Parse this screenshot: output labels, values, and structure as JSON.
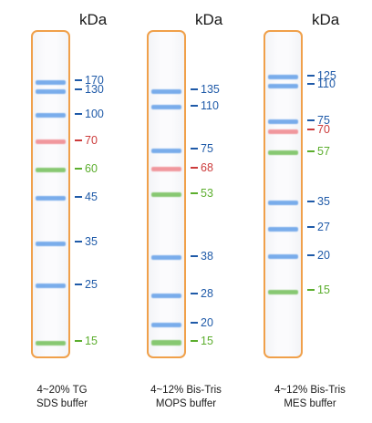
{
  "unit_label": "kDa",
  "colors": {
    "blue": "#1f5aa8",
    "red": "#cc3b3b",
    "green": "#5cae2e",
    "border": "#f0a04a"
  },
  "ladders": [
    {
      "caption": [
        "4~20% TG",
        "SDS buffer"
      ],
      "markers": [
        {
          "mw": "170",
          "color": "blue",
          "pos": 0.153
        },
        {
          "mw": "130",
          "color": "blue",
          "pos": 0.181
        },
        {
          "mw": "100",
          "color": "blue",
          "pos": 0.255
        },
        {
          "mw": "70",
          "color": "red",
          "pos": 0.335
        },
        {
          "mw": "60",
          "color": "green",
          "pos": 0.422
        },
        {
          "mw": "45",
          "color": "blue",
          "pos": 0.508
        },
        {
          "mw": "35",
          "color": "blue",
          "pos": 0.645
        },
        {
          "mw": "25",
          "color": "blue",
          "pos": 0.774
        },
        {
          "mw": "15",
          "color": "green",
          "pos": 0.948
        }
      ]
    },
    {
      "caption": [
        "4~12% Bis-Tris",
        "MOPS buffer"
      ],
      "markers": [
        {
          "mw": "135",
          "color": "blue",
          "pos": 0.181
        },
        {
          "mw": "110",
          "color": "blue",
          "pos": 0.23
        },
        {
          "mw": "75",
          "color": "blue",
          "pos": 0.362
        },
        {
          "mw": "68",
          "color": "red",
          "pos": 0.419
        },
        {
          "mw": "53",
          "color": "green",
          "pos": 0.496
        },
        {
          "mw": "38",
          "color": "blue",
          "pos": 0.688
        },
        {
          "mw": "28",
          "color": "blue",
          "pos": 0.803
        },
        {
          "mw": "20",
          "color": "blue",
          "pos": 0.893
        },
        {
          "mw": "15",
          "color": "green",
          "pos": 0.948
        }
      ]
    },
    {
      "caption": [
        "4~12% Bis-Tris",
        "MES buffer"
      ],
      "markers": [
        {
          "mw": "125",
          "color": "blue",
          "pos": 0.138
        },
        {
          "mw": "110",
          "color": "blue",
          "pos": 0.165
        },
        {
          "mw": "75",
          "color": "blue",
          "pos": 0.274
        },
        {
          "mw": "70",
          "color": "red",
          "pos": 0.304
        },
        {
          "mw": "57",
          "color": "green",
          "pos": 0.369
        },
        {
          "mw": "35",
          "color": "blue",
          "pos": 0.521
        },
        {
          "mw": "27",
          "color": "blue",
          "pos": 0.601
        },
        {
          "mw": "20",
          "color": "blue",
          "pos": 0.685
        },
        {
          "mw": "15",
          "color": "green",
          "pos": 0.792
        }
      ]
    }
  ]
}
